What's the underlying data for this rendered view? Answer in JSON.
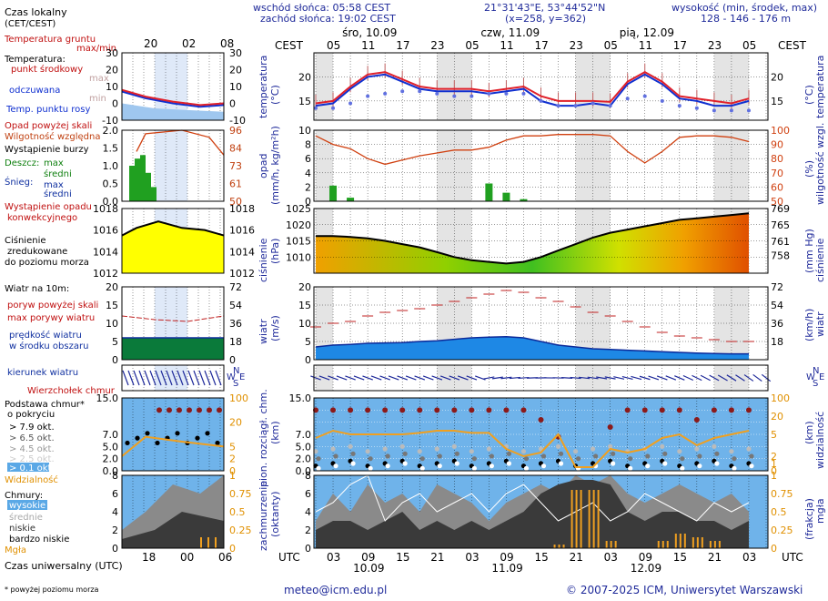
{
  "header": {
    "sunrise": "wschód słońca: 05:58 CEST",
    "sunset": "zachód słońca: 19:02 CEST",
    "coords": "21°31'43\"E, 53°44'52\"N",
    "grid": "(x=258,  y=362)",
    "altitude_label": "wysokość (min, środek, max)",
    "altitude_value": "128 - 146 - 176 m"
  },
  "legend": {
    "local_time": "Czas lokalny",
    "local_time_sub": "(CET/CEST)",
    "ground_temp": "Temperatura gruntu",
    "max_min": "max/min",
    "temperature": "Temperatura:",
    "center": "punkt środkowy",
    "max": "max",
    "min": "min",
    "perceived": "odczuwana",
    "dew": "Temp. punktu rosy",
    "precip_over": "Opad powyżej skali",
    "humidity": "Wilgotność względna",
    "storm": "Wystąpienie burzy",
    "rain": "Deszcz:",
    "rain_max": "max",
    "rain_mean": "średni",
    "snow": "Śnieg:",
    "snow_max": "max",
    "snow_mean": "średni",
    "conv1": "Wystąpienie opadu",
    "conv2": "konwekcyjnego",
    "pressure1": "Ciśnienie",
    "pressure2": "zredukowane",
    "pressure3": "do poziomu morza",
    "wind_at": "Wiatr na 10m:",
    "gust_over": "poryw powyżej skali",
    "gust_max": "max porywy wiatru",
    "wind_speed1": "prędkość wiatru",
    "wind_speed2": "w środku obszaru",
    "wind_dir": "kierunek wiatru",
    "cloud_top": "Wierzchołek chmur",
    "cloud_base1": "Podstawa chmur*",
    "cloud_base2": "o pokryciu",
    "okt79": "> 7.9 okt.",
    "okt65": "> 6.5 okt.",
    "okt45": "> 4.5 okt.",
    "okt25": "> 2.5 okt.",
    "okt01": "> 0.1 okt.",
    "visibility": "Widzialność",
    "clouds": "Chmury:",
    "c_high": "wysokie",
    "c_mid": "średnie",
    "c_low": "niskie",
    "c_vlow": "bardzo niskie",
    "fog": "Mgła",
    "utc_label": "Czas uniwersalny (UTC)",
    "footnote": "* powyżej poziomu morza"
  },
  "mini_axis": {
    "top_hours": [
      "20",
      "02",
      "08"
    ],
    "bottom_hours": [
      "18",
      "00",
      "06"
    ]
  },
  "axes": {
    "cest": "CEST",
    "utc": "UTC",
    "temp_left": "temperatura",
    "temp_left_unit": "(°C)",
    "temp_right_unit": "(°C)",
    "temp_right": "temperatura",
    "precip_left": "opad",
    "precip_left_unit": "(mm/h, kg/m²h)",
    "precip_right_unit": "(%)",
    "precip_right": "wilgotność wzgl.",
    "press_left": "ciśnienie",
    "press_left_unit": "(hPa)",
    "press_right_unit": "(mm Hg)",
    "press_right": "ciśnienie",
    "wind_left": "wiatr",
    "wind_left_unit": "(m/s)",
    "wind_right_unit": "(km/h)",
    "wind_right": "wiatr",
    "cloud_left1": "pion. rozciągł. chm.",
    "cloud_left2": "(km)",
    "cloud_right1": "(km)",
    "cloud_right2": "widzialność",
    "cover_left1": "zachmurzenie",
    "cover_left2": "(oktanty)",
    "cover_right1": "(frakcja)",
    "cover_right2": "mgła"
  },
  "days": {
    "top": [
      "śro, 10.09",
      "czw, 11.09",
      "pią, 12.09"
    ],
    "bottom": [
      "10.09",
      "11.09",
      "12.09"
    ]
  },
  "footer": {
    "email": "meteo@icm.edu.pl",
    "copyright": "© 2007-2025 ICM, Uniwersytet Warszawski"
  },
  "colors": {
    "temperature": "#e0202a",
    "perceived": "#1030d0",
    "dew": "#6070e0",
    "humidity": "#d04010",
    "precip": "#20a020",
    "pressure_line": "#000000",
    "wind": "#1060d0",
    "gust": "#c02020",
    "visibility": "#f0a020",
    "fog": "#f0a020",
    "cloud_high": "#ffffff",
    "cloud_mid": "#a0a0a0",
    "cloud_low": "#505050",
    "cloud_panel_bg": "#6fb3ea"
  },
  "chart_data": [
    {
      "type": "line",
      "title": "temperatura",
      "ylabel": "(°C)",
      "ylim": [
        11,
        25
      ],
      "x_hours_utc": [
        0,
        3,
        6,
        9,
        12,
        15,
        18,
        21,
        24,
        27,
        30,
        33,
        36,
        39,
        42,
        45,
        48,
        51,
        54,
        57,
        60,
        63,
        66,
        69,
        72,
        75
      ],
      "series": [
        {
          "name": "punkt środkowy",
          "values": [
            14.5,
            15,
            18,
            20.5,
            21,
            19.5,
            18,
            17.5,
            17.5,
            17.5,
            17,
            17.5,
            18,
            16,
            15,
            15,
            15,
            14.8,
            19,
            21,
            19,
            16,
            15.5,
            15,
            14.5,
            15.5
          ]
        },
        {
          "name": "odczuwana",
          "values": [
            14,
            14.5,
            17.5,
            20,
            20.5,
            19,
            17.5,
            17,
            17,
            17,
            16.5,
            17,
            17.5,
            15,
            14,
            14,
            14.5,
            14,
            18.5,
            20.5,
            18.5,
            15.5,
            15,
            14,
            14,
            15
          ]
        },
        {
          "name": "Temp. punktu rosy",
          "values": [
            13.5,
            13.5,
            14.5,
            16,
            16.5,
            17,
            17,
            16.5,
            16,
            16,
            16.5,
            16.5,
            16.5,
            15,
            14,
            14,
            14.5,
            14,
            15.5,
            16,
            15,
            14,
            13.5,
            13,
            13,
            13
          ]
        }
      ]
    },
    {
      "type": "bar",
      "title": "opad",
      "ylabel": "(mm/h, kg/m²h)",
      "ylim": [
        0,
        10
      ],
      "y2label": "wilgotność wzgl. (%)",
      "y2lim": [
        50,
        100
      ],
      "x_hours_utc": [
        0,
        3,
        6,
        9,
        12,
        15,
        18,
        21,
        24,
        27,
        30,
        33,
        36,
        39,
        42,
        45,
        48,
        51,
        54,
        57,
        60,
        63,
        66,
        69,
        72,
        75
      ],
      "series": [
        {
          "name": "opad",
          "values": [
            0,
            2.2,
            0.5,
            0,
            0,
            0,
            0,
            0,
            0,
            0,
            2.5,
            1.2,
            0.3,
            0,
            0,
            0,
            0,
            0,
            0,
            0,
            0,
            0,
            0,
            0,
            0,
            0
          ]
        },
        {
          "name": "wilgotność względna",
          "values": [
            96,
            90,
            87,
            80,
            76,
            79,
            82,
            84,
            86,
            86,
            88,
            93,
            96,
            96,
            97,
            97,
            97,
            96,
            85,
            77,
            85,
            95,
            96,
            96,
            95,
            92
          ]
        }
      ]
    },
    {
      "type": "area",
      "title": "ciśnienie",
      "ylabel": "(hPa)",
      "ylim": [
        1005,
        1025
      ],
      "x_hours_utc": [
        0,
        3,
        6,
        9,
        12,
        15,
        18,
        21,
        24,
        27,
        30,
        33,
        36,
        39,
        42,
        45,
        48,
        51,
        54,
        57,
        60,
        63,
        66,
        69,
        72,
        75
      ],
      "series": [
        {
          "name": "ciśnienie",
          "values": [
            1016.5,
            1016.5,
            1016.2,
            1015.8,
            1015,
            1014,
            1013,
            1011.5,
            1010,
            1009,
            1008.5,
            1008,
            1008.5,
            1010,
            1012,
            1014,
            1016,
            1017.5,
            1018.5,
            1019.5,
            1020.5,
            1021.5,
            1022,
            1022.5,
            1023,
            1023.5
          ]
        }
      ]
    },
    {
      "type": "line",
      "title": "wiatr",
      "ylabel": "(m/s)",
      "ylim": [
        0,
        20
      ],
      "y2label": "(km/h)",
      "x_hours_utc": [
        0,
        3,
        6,
        9,
        12,
        15,
        18,
        21,
        24,
        27,
        30,
        33,
        36,
        39,
        42,
        45,
        48,
        51,
        54,
        57,
        60,
        63,
        66,
        69,
        72,
        75
      ],
      "series": [
        {
          "name": "max porywy wiatru",
          "values": [
            9,
            10,
            10.5,
            12,
            13,
            13.5,
            14,
            15,
            16,
            17,
            18,
            19,
            18.5,
            17,
            16,
            14.5,
            13,
            12,
            10.5,
            9,
            7.5,
            6.5,
            6,
            5.5,
            5,
            5
          ]
        },
        {
          "name": "prędkość wiatru",
          "values": [
            3.5,
            4,
            4.2,
            4.5,
            4.6,
            4.7,
            5,
            5.2,
            5.6,
            6,
            6.2,
            6.3,
            6,
            5,
            4,
            3.5,
            3,
            2.8,
            2.6,
            2.4,
            2.2,
            2,
            1.8,
            1.7,
            1.6,
            1.6
          ]
        }
      ]
    },
    {
      "type": "scatter",
      "title": "pion. rozciągł. chm.",
      "ylabel": "(km)",
      "ylim": [
        0,
        15
      ],
      "y2label": "widzialność (km)",
      "y2lim": [
        0,
        100
      ],
      "x_hours_utc": [
        0,
        3,
        6,
        9,
        12,
        15,
        18,
        21,
        24,
        27,
        30,
        33,
        36,
        39,
        42,
        45,
        48,
        51,
        54,
        57,
        60,
        63,
        66,
        69,
        72,
        75
      ],
      "series": [
        {
          "name": "Wierzchołek chmur",
          "values": [
            12.5,
            12.5,
            12.5,
            12.5,
            12.5,
            12.5,
            12.5,
            12.5,
            12.5,
            12.5,
            12.5,
            12.5,
            12.5,
            10.5,
            7,
            0,
            0,
            9,
            12.5,
            12.5,
            12.5,
            12.5,
            10.5,
            12.5,
            12.5,
            12.5
          ]
        },
        {
          "name": "Widzialność",
          "values": [
            45,
            55,
            50,
            50,
            50,
            50,
            52,
            55,
            55,
            52,
            52,
            30,
            20,
            25,
            50,
            5,
            5,
            30,
            25,
            30,
            45,
            50,
            35,
            45,
            50,
            55
          ]
        }
      ]
    },
    {
      "type": "area",
      "title": "zachmurzenie",
      "ylabel": "(oktanty)",
      "ylim": [
        0,
        8
      ],
      "y2label": "mgła (frakcja)",
      "y2lim": [
        0,
        1
      ],
      "x_hours_utc": [
        0,
        3,
        6,
        9,
        12,
        15,
        18,
        21,
        24,
        27,
        30,
        33,
        36,
        39,
        42,
        45,
        48,
        51,
        54,
        57,
        60,
        63,
        66,
        69,
        72,
        75
      ],
      "series": [
        {
          "name": "wysokie",
          "values": [
            4,
            5,
            7,
            8,
            3,
            5,
            6,
            4,
            5,
            6,
            4,
            6,
            7,
            5,
            3,
            4,
            5,
            3,
            4,
            6,
            5,
            4,
            3,
            5,
            4,
            5
          ]
        },
        {
          "name": "średnie",
          "values": [
            3,
            6,
            4,
            7,
            5,
            6,
            4,
            7,
            6,
            5,
            3,
            5,
            6,
            7,
            6,
            8,
            7,
            8,
            6,
            5,
            6,
            7,
            6,
            5,
            6,
            4
          ]
        },
        {
          "name": "niskie",
          "values": [
            2,
            3,
            3,
            2,
            3,
            4,
            2,
            3,
            2,
            3,
            2,
            3,
            4,
            6,
            7,
            7.5,
            7.5,
            7,
            4,
            3,
            4,
            4,
            3,
            3,
            2,
            3
          ]
        },
        {
          "name": "Mgła",
          "values": [
            0,
            0,
            0,
            0,
            0,
            0,
            0,
            0,
            0,
            0,
            0,
            0,
            0,
            0,
            0.05,
            0.8,
            0.8,
            0.1,
            0,
            0,
            0.1,
            0.2,
            0.15,
            0.1,
            0,
            0
          ]
        }
      ]
    }
  ]
}
